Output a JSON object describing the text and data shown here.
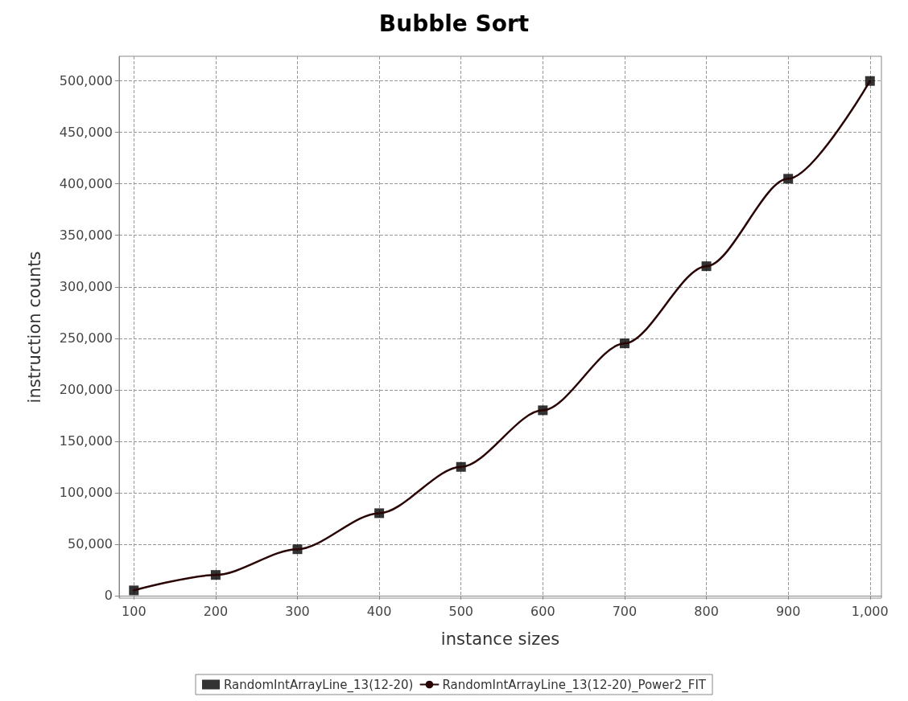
{
  "chart_data": {
    "type": "line",
    "title": "Bubble Sort",
    "xlabel": "instance sizes",
    "ylabel": "instruction counts",
    "x": [
      100,
      200,
      300,
      400,
      500,
      600,
      700,
      800,
      900,
      1000
    ],
    "series": [
      {
        "name": "RandomIntArrayLine_13(12-20)",
        "type": "scatter",
        "color": "#000000",
        "marker": "square",
        "values": [
          5000,
          20000,
          45000,
          80000,
          125000,
          180000,
          245000,
          320000,
          405000,
          500000
        ]
      },
      {
        "name": "RandomIntArrayLine_13(12-20)_Power2_FIT",
        "color": "#2a0505",
        "marker": "none",
        "values": [
          5000,
          20000,
          45000,
          80000,
          125000,
          180000,
          245000,
          320000,
          405000,
          500000
        ]
      }
    ],
    "xlim": [
      82,
      1014
    ],
    "ylim": [
      -2500,
      524000
    ],
    "xticks": [
      100,
      200,
      300,
      400,
      500,
      600,
      700,
      800,
      900,
      {
        "value": 1000,
        "label": "1,000"
      }
    ],
    "yticks": [
      0,
      {
        "value": 50000,
        "label": "50,000"
      },
      {
        "value": 100000,
        "label": "100,000"
      },
      {
        "value": 150000,
        "label": "150,000"
      },
      {
        "value": 200000,
        "label": "200,000"
      },
      {
        "value": 250000,
        "label": "250,000"
      },
      {
        "value": 300000,
        "label": "300,000"
      },
      {
        "value": 350000,
        "label": "350,000"
      },
      {
        "value": 400000,
        "label": "400,000"
      },
      {
        "value": 450000,
        "label": "450,000"
      },
      {
        "value": 500000,
        "label": "500,000"
      }
    ],
    "grid": true,
    "legend": "bottom",
    "line_style": "solid"
  }
}
